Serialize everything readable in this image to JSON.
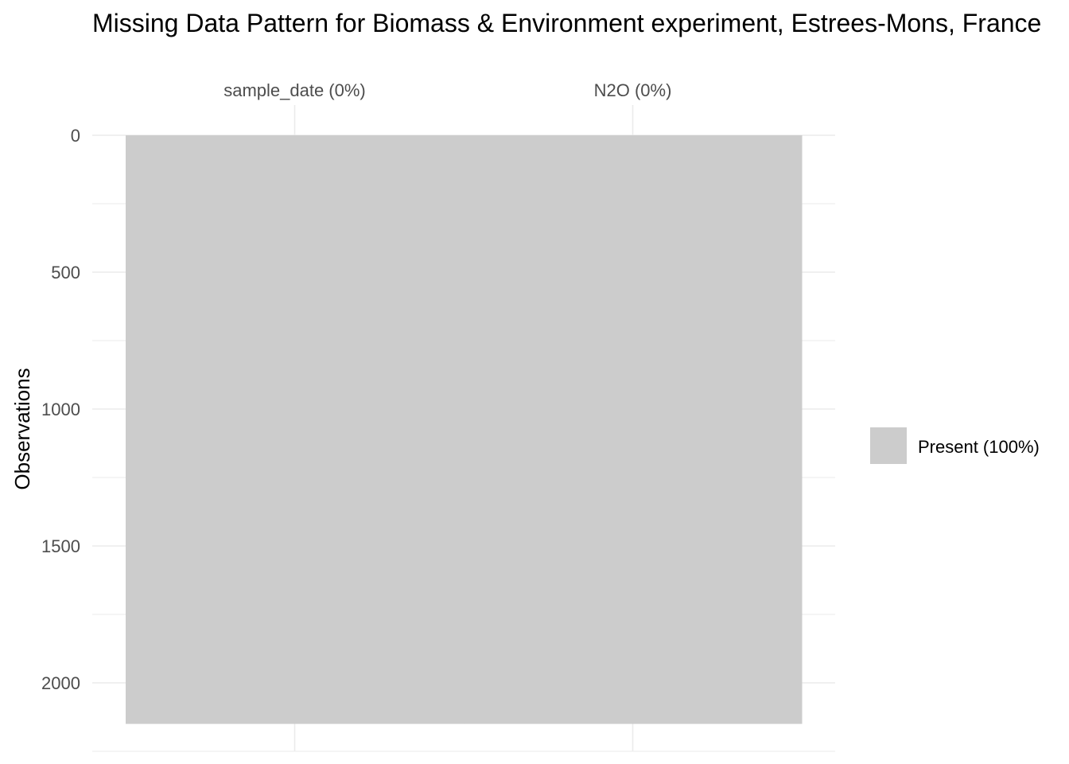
{
  "chart_data": {
    "type": "heatmap",
    "title": "Missing Data Pattern for Biomass & Environment experiment, Estrees-Mons, France",
    "xlabel": "",
    "ylabel": "Observations",
    "x_axis_position": "top",
    "y_reversed": true,
    "variables": [
      {
        "name": "sample_date",
        "label": "sample_date (0%)",
        "missing_pct": 0
      },
      {
        "name": "N2O",
        "label": "N2O (0%)",
        "missing_pct": 0
      }
    ],
    "n_observations": 2150,
    "ylim": [
      0,
      2250
    ],
    "y_ticks": [
      0,
      500,
      1000,
      1500,
      2000
    ],
    "y_tick_labels": [
      "0",
      "500",
      "1000",
      "1500",
      "2000"
    ],
    "y_minor_ticks": [
      250,
      750,
      1250,
      1750,
      2250
    ],
    "grid": true,
    "legend": {
      "position": "right",
      "entries": [
        {
          "label": "Present (100%)",
          "color": "#cccccc"
        }
      ]
    },
    "colors": {
      "present": "#cccccc",
      "grid": "#ebebeb",
      "tick_text": "#4d4d4d"
    }
  }
}
